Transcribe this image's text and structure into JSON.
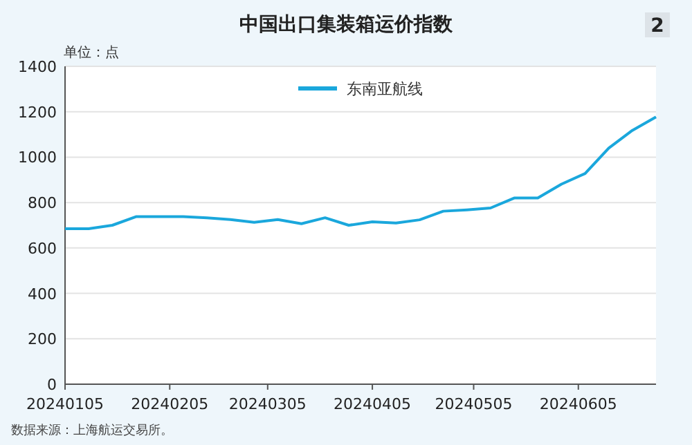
{
  "chart_data": {
    "type": "line",
    "title": "中国出口集装箱运价指数",
    "ylabel": "单位：点",
    "annotations": [
      "2",
      "数据来源：上海航运交易所。"
    ],
    "x": [
      "2024-01-05",
      "2024-01-12",
      "2024-01-19",
      "2024-01-26",
      "2024-02-02",
      "2024-02-09",
      "2024-02-16",
      "2024-02-23",
      "2024-03-01",
      "2024-03-08",
      "2024-03-15",
      "2024-03-22",
      "2024-03-29",
      "2024-04-05",
      "2024-04-12",
      "2024-04-19",
      "2024-04-26",
      "2024-05-03",
      "2024-05-10",
      "2024-05-17",
      "2024-05-24",
      "2024-05-31",
      "2024-06-07",
      "2024-06-14",
      "2024-06-21",
      "2024-06-28"
    ],
    "series": [
      {
        "name": "东南亚航线",
        "color": "#1aa7dc",
        "values": [
          685,
          685,
          700,
          738,
          738,
          738,
          733,
          725,
          713,
          725,
          707,
          733,
          700,
          715,
          710,
          724,
          762,
          768,
          776,
          820,
          820,
          881,
          928,
          1040,
          1118,
          1177
        ]
      }
    ],
    "xlim": [
      "2024-01-05",
      "2024-06-28"
    ],
    "xticks": [
      {
        "value": "2024-01-05",
        "label": "20240105"
      },
      {
        "value": "2024-02-05",
        "label": "20240205"
      },
      {
        "value": "2024-03-05",
        "label": "20240305"
      },
      {
        "value": "2024-04-05",
        "label": "20240405"
      },
      {
        "value": "2024-05-05",
        "label": "20240505"
      },
      {
        "value": "2024-06-05",
        "label": "20240605"
      }
    ],
    "ylim": [
      0,
      1400
    ],
    "yticks": [
      0,
      200,
      400,
      600,
      800,
      1000,
      1200,
      1400
    ],
    "grid": "y",
    "legend": "top",
    "marker": "none",
    "line_style": "solid"
  }
}
